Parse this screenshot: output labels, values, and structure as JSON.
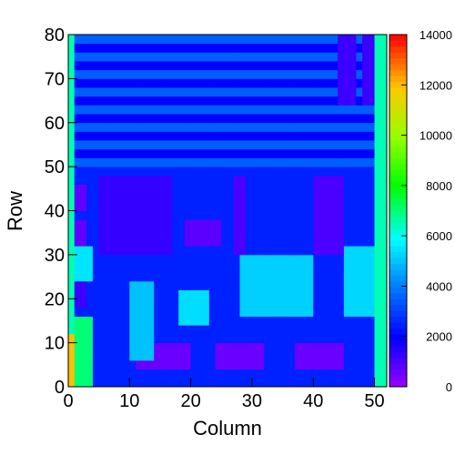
{
  "chart_data": {
    "type": "heatmap",
    "title": "",
    "xlabel": "Column",
    "ylabel": "Row",
    "xlim": [
      0,
      52
    ],
    "ylim": [
      0,
      80
    ],
    "zlim": [
      0,
      14000
    ],
    "x_ticks": [
      0,
      10,
      20,
      30,
      40,
      50
    ],
    "y_ticks": [
      0,
      10,
      20,
      30,
      40,
      50,
      60,
      70,
      80
    ],
    "colorbar_ticks": [
      0,
      2000,
      4000,
      6000,
      8000,
      10000,
      12000,
      14000
    ],
    "colormap": "rainbow (violet-blue-cyan-green-yellow-red)",
    "grid": false,
    "cell_size": [
      1,
      2
    ],
    "regions_approx": [
      {
        "cols": [
          0,
          52
        ],
        "rows": [
          0,
          80
        ],
        "value": 2500,
        "note": "background"
      },
      {
        "cols": [
          0,
          52
        ],
        "rows": [
          50,
          80
        ],
        "value": 2800,
        "note": "upper horizontal bands alternating ~2000/3500"
      },
      {
        "cols": [
          1,
          4
        ],
        "rows": [
          0,
          16
        ],
        "value": 7000
      },
      {
        "cols": [
          0,
          1
        ],
        "rows": [
          0,
          12
        ],
        "value": 12000
      },
      {
        "cols": [
          1,
          3
        ],
        "rows": [
          17,
          24
        ],
        "value": 1200
      },
      {
        "cols": [
          1,
          4
        ],
        "rows": [
          24,
          32
        ],
        "value": 5500
      },
      {
        "cols": [
          1,
          3
        ],
        "rows": [
          32,
          38
        ],
        "value": 700
      },
      {
        "cols": [
          1,
          3
        ],
        "rows": [
          40,
          46
        ],
        "value": 700
      },
      {
        "cols": [
          5,
          17
        ],
        "rows": [
          30,
          48
        ],
        "value": 1300
      },
      {
        "cols": [
          19,
          25
        ],
        "rows": [
          32,
          38
        ],
        "value": 800
      },
      {
        "cols": [
          27,
          29
        ],
        "rows": [
          30,
          48
        ],
        "value": 1000
      },
      {
        "cols": [
          40,
          45
        ],
        "rows": [
          30,
          48
        ],
        "value": 1000
      },
      {
        "cols": [
          11,
          20
        ],
        "rows": [
          3,
          9
        ],
        "value": 600
      },
      {
        "cols": [
          24,
          32
        ],
        "rows": [
          3,
          9
        ],
        "value": 600
      },
      {
        "cols": [
          37,
          45
        ],
        "rows": [
          3,
          9
        ],
        "value": 600
      },
      {
        "cols": [
          28,
          40
        ],
        "rows": [
          16,
          30
        ],
        "value": 5200
      },
      {
        "cols": [
          45,
          51
        ],
        "rows": [
          16,
          32
        ],
        "value": 5300
      },
      {
        "cols": [
          10,
          14
        ],
        "rows": [
          6,
          24
        ],
        "value": 5000
      },
      {
        "cols": [
          18,
          23
        ],
        "rows": [
          14,
          22
        ],
        "value": 5400
      },
      {
        "cols": [
          44,
          47
        ],
        "rows": [
          64,
          80
        ],
        "value": 1200
      },
      {
        "cols": [
          48,
          50
        ],
        "rows": [
          64,
          80
        ],
        "value": 1200
      },
      {
        "cols": [
          50,
          52
        ],
        "rows": [
          0,
          80
        ],
        "value": 6500,
        "note": "right edge column"
      },
      {
        "cols": [
          0,
          1
        ],
        "rows": [
          12,
          80
        ],
        "value": 6500,
        "note": "left edge column"
      }
    ]
  }
}
